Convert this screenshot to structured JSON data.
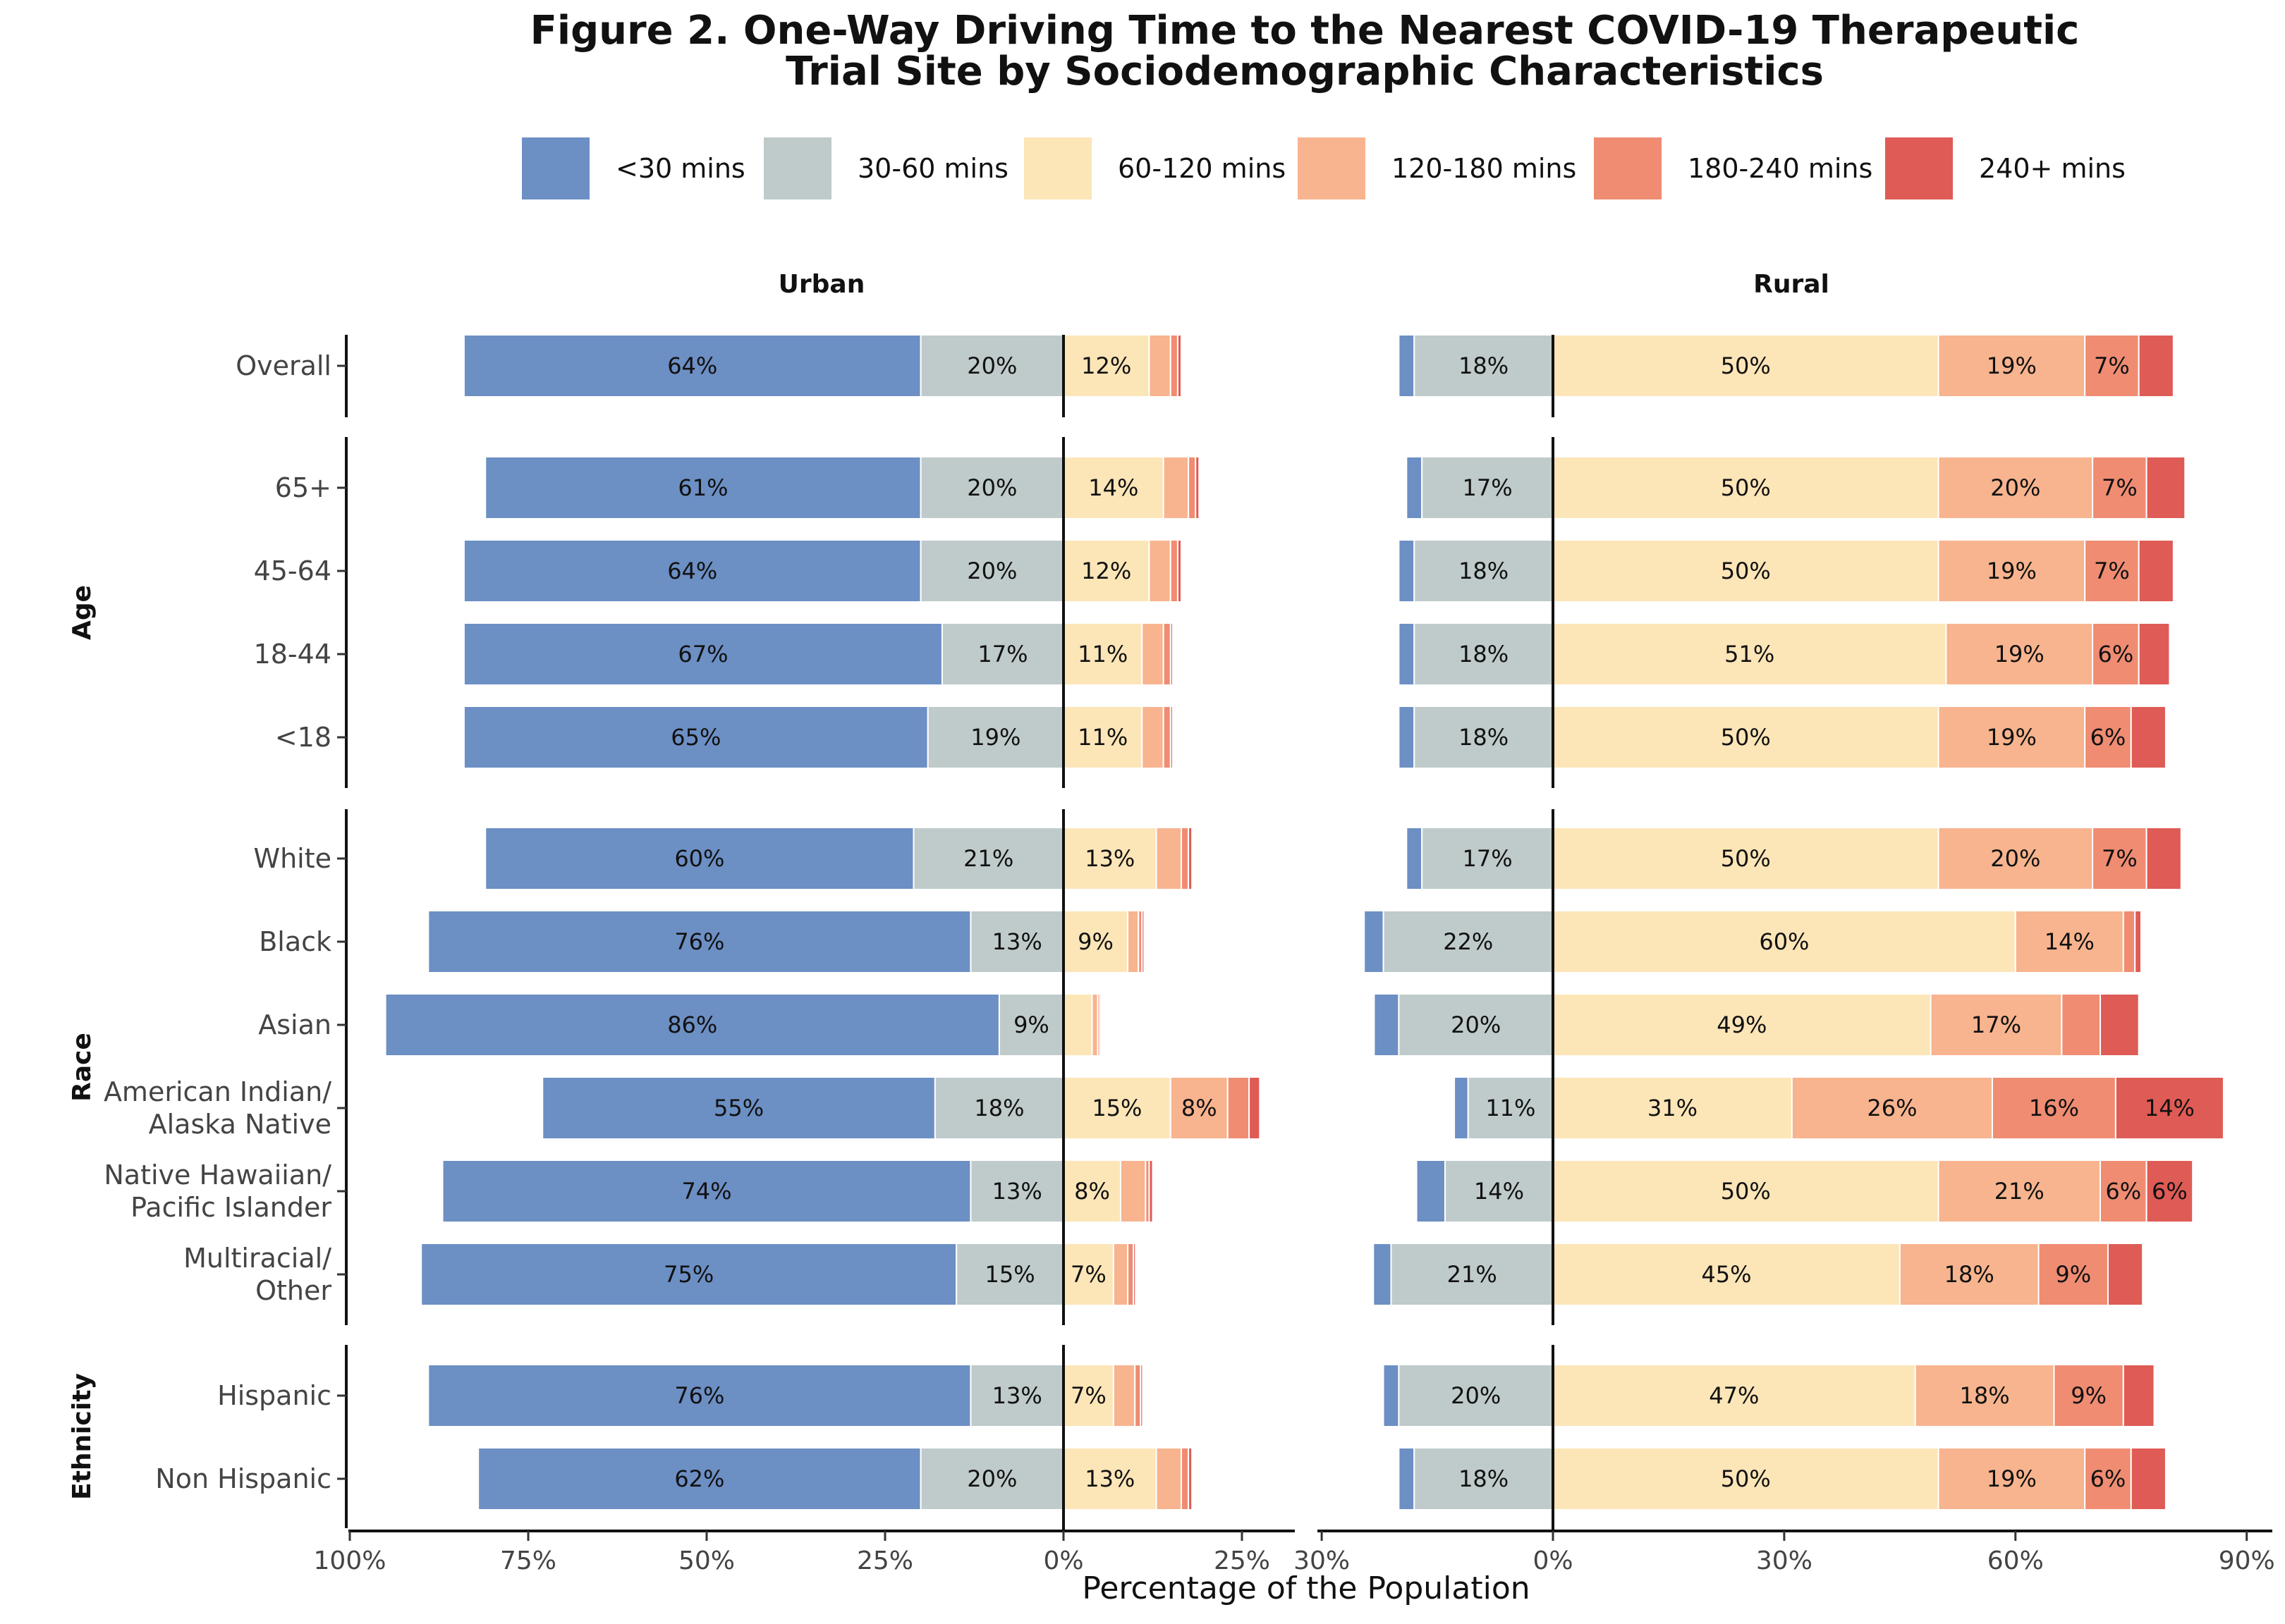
{
  "chart_data": {
    "type": "bar",
    "orientation": "horizontal-diverging",
    "title": "Figure 2. One-Way Driving Time to the Nearest COVID-19 Therapeutic Trial Site by Sociodemographic Characteristics",
    "title_lines": [
      "Figure 2. One-Way Driving Time to the Nearest COVID-19 Therapeutic",
      "Trial Site by Sociodemographic Characteristics"
    ],
    "xlabel": "Percentage of the Population",
    "legend": {
      "placement": "top",
      "entries": [
        {
          "name": "<30 mins",
          "color": "#6C8FC4"
        },
        {
          "name": "30-60 mins",
          "color": "#BFCACA"
        },
        {
          "name": "60-120 mins",
          "color": "#FCE5B7"
        },
        {
          "name": "120-180 mins",
          "color": "#F7B48E"
        },
        {
          "name": "180-240 mins",
          "color": "#EF8C72"
        },
        {
          "name": "240+ mins",
          "color": "#DF5B55"
        }
      ]
    },
    "groups": [
      {
        "name": "",
        "rows": [
          "Overall"
        ]
      },
      {
        "name": "Age",
        "rows": [
          "65+",
          "45-64",
          "18-44",
          "<18"
        ]
      },
      {
        "name": "Race",
        "rows": [
          "White",
          "Black",
          "Asian",
          "American Indian/\nAlaska Native",
          "Native Hawaiian/\nPacific Islander",
          "Multiracial/\nOther"
        ]
      },
      {
        "name": "Ethnicity",
        "rows": [
          "Hispanic",
          "Non Hispanic"
        ]
      }
    ],
    "panels": [
      {
        "name": "Urban",
        "xlim": [
          -100,
          30
        ],
        "ticks": [
          -100,
          -75,
          -50,
          -25,
          0,
          25
        ],
        "tick_labels": [
          "100%",
          "75%",
          "50%",
          "25%",
          "0%",
          "25%"
        ],
        "data": {
          "Overall": [
            64,
            20,
            12,
            3,
            1,
            0.5
          ],
          "65+": [
            61,
            20,
            14,
            3.5,
            1,
            0.5
          ],
          "45-64": [
            64,
            20,
            12,
            3,
            1,
            0.5
          ],
          "18-44": [
            67,
            17,
            11,
            3,
            1,
            0.3
          ],
          "<18": [
            65,
            19,
            11,
            3,
            1,
            0.3
          ],
          "White": [
            60,
            21,
            13,
            3.5,
            1,
            0.5
          ],
          "Black": [
            76,
            13,
            9,
            1.5,
            0.5,
            0.3
          ],
          "Asian": [
            86,
            9,
            4,
            0.8,
            0.3,
            0.2
          ],
          "American Indian/\nAlaska Native": [
            55,
            18,
            15,
            8,
            3,
            1.5
          ],
          "Native Hawaiian/\nPacific Islander": [
            74,
            13,
            8,
            3.5,
            0.5,
            0.5
          ],
          "Multiracial/\nOther": [
            75,
            15,
            7,
            2,
            0.8,
            0.3
          ],
          "Hispanic": [
            76,
            13,
            7,
            3,
            0.8,
            0.3
          ],
          "Non Hispanic": [
            62,
            20,
            13,
            3.5,
            1,
            0.5
          ]
        }
      },
      {
        "name": "Rural",
        "xlim": [
          -30,
          90
        ],
        "ticks": [
          -30,
          0,
          30,
          60,
          90
        ],
        "tick_labels": [
          "30%",
          "0%",
          "30%",
          "60%",
          "90%"
        ],
        "data": {
          "Overall": [
            2,
            18,
            50,
            19,
            7,
            4.5
          ],
          "65+": [
            2,
            17,
            50,
            20,
            7,
            5
          ],
          "45-64": [
            2,
            18,
            50,
            19,
            7,
            4.5
          ],
          "18-44": [
            2,
            18,
            51,
            19,
            6,
            4
          ],
          "<18": [
            2,
            18,
            50,
            19,
            6,
            4.5
          ],
          "White": [
            2,
            17,
            50,
            20,
            7,
            4.5
          ],
          "Black": [
            2.5,
            22,
            60,
            14,
            1.5,
            0.8
          ],
          "Asian": [
            3.2,
            20,
            49,
            17,
            5,
            5
          ],
          "American Indian/\nAlaska Native": [
            1.8,
            11,
            31,
            26,
            16,
            14
          ],
          "Native Hawaiian/\nPacific Islander": [
            3.7,
            14,
            50,
            21,
            6,
            6
          ],
          "Multiracial/\nOther": [
            2.3,
            21,
            45,
            18,
            9,
            4.5
          ],
          "Hispanic": [
            2,
            20,
            47,
            18,
            9,
            4
          ],
          "Non Hispanic": [
            2,
            18,
            50,
            19,
            6,
            4.5
          ]
        }
      }
    ]
  }
}
